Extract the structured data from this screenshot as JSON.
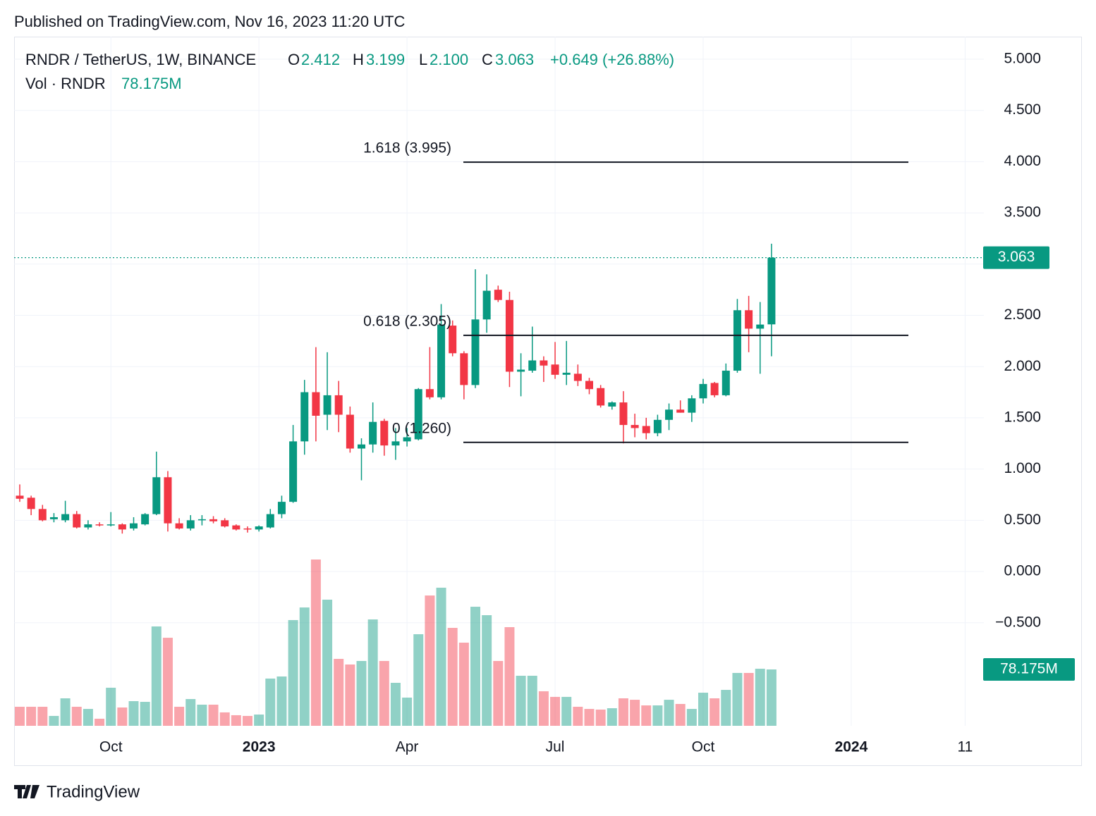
{
  "header": "Published on TradingView.com, Nov 16, 2023 11:20 UTC",
  "legend": {
    "symbol": "RNDR / TetherUS, 1W, BINANCE",
    "o_label": "O",
    "o": "2.412",
    "h_label": "H",
    "h": "3.199",
    "l_label": "L",
    "l": "2.100",
    "c_label": "C",
    "c": "3.063",
    "change": "+0.649 (+26.88%)",
    "vol_label": "Vol · RNDR",
    "vol": "78.175M"
  },
  "footer": "TradingView",
  "chart_data": {
    "type": "candlestick",
    "up_color": "#089981",
    "down_color": "#f23645",
    "ylim": [
      -1.506,
      5.22
    ],
    "yticks": [
      {
        "value": 5,
        "label": "5.000"
      },
      {
        "value": 4.5,
        "label": "4.500"
      },
      {
        "value": 4,
        "label": "4.000"
      },
      {
        "value": 3.5,
        "label": "3.500"
      },
      {
        "value": 3,
        "label": "3.000"
      },
      {
        "value": 2.5,
        "label": "2.500"
      },
      {
        "value": 2,
        "label": "2.000"
      },
      {
        "value": 1.5,
        "label": "1.500"
      },
      {
        "value": 1,
        "label": "1.000"
      },
      {
        "value": 0.5,
        "label": "0.500"
      },
      {
        "value": 0,
        "label": "0.000"
      },
      {
        "value": -0.5,
        "label": "−0.500"
      }
    ],
    "xticks": [
      {
        "value": 8,
        "label": "Oct"
      },
      {
        "value": 21,
        "label": "2023"
      },
      {
        "value": 34,
        "label": "Apr"
      },
      {
        "value": 47,
        "label": "Jul"
      },
      {
        "value": 60,
        "label": "Oct"
      },
      {
        "value": 73,
        "label": "2024"
      },
      {
        "value": 83,
        "label": "11"
      }
    ],
    "open": [
      0.74,
      0.72,
      0.61,
      0.51,
      0.5,
      0.56,
      0.43,
      0.46,
      0.45,
      0.46,
      0.42,
      0.46,
      0.56,
      0.92,
      0.47,
      0.42,
      0.5,
      0.51,
      0.5,
      0.45,
      0.42,
      0.41,
      0.43,
      0.56,
      0.68,
      1.27,
      1.75,
      1.53,
      1.72,
      1.53,
      1.2,
      1.24,
      1.47,
      1.23,
      1.27,
      1.29,
      1.78,
      1.7,
      2.4,
      2.13,
      1.82,
      2.46,
      2.75,
      2.65,
      1.95,
      1.96,
      2.06,
      2.02,
      1.92,
      1.93,
      1.86,
      1.79,
      1.61,
      1.65,
      1.43,
      1.42,
      1.35,
      1.48,
      1.58,
      1.55,
      1.69,
      1.84,
      1.72,
      1.96,
      2.55,
      2.37,
      2.412
    ],
    "high": [
      0.85,
      0.74,
      0.65,
      0.57,
      0.69,
      0.59,
      0.5,
      0.48,
      0.58,
      0.47,
      0.53,
      0.57,
      1.17,
      0.98,
      0.52,
      0.55,
      0.55,
      0.54,
      0.52,
      0.46,
      0.44,
      0.45,
      0.61,
      0.74,
      1.43,
      1.87,
      2.19,
      2.14,
      1.86,
      1.61,
      1.3,
      1.65,
      1.49,
      1.4,
      1.4,
      1.79,
      2.19,
      2.61,
      2.45,
      2.15,
      2.95,
      2.9,
      2.79,
      2.73,
      2.13,
      2.39,
      2.1,
      2.24,
      2.25,
      2.02,
      1.89,
      1.82,
      1.66,
      1.76,
      1.54,
      1.5,
      1.53,
      1.64,
      1.67,
      1.72,
      1.88,
      1.85,
      2.03,
      2.66,
      2.69,
      2.63,
      3.199
    ],
    "low": [
      0.68,
      0.55,
      0.49,
      0.48,
      0.48,
      0.42,
      0.41,
      0.44,
      0.44,
      0.37,
      0.4,
      0.45,
      0.55,
      0.39,
      0.41,
      0.4,
      0.45,
      0.47,
      0.43,
      0.4,
      0.38,
      0.39,
      0.42,
      0.52,
      0.67,
      1.14,
      1.27,
      1.38,
      1.36,
      1.16,
      0.89,
      1.16,
      1.13,
      1.09,
      1.22,
      1.28,
      1.68,
      1.68,
      2.1,
      1.68,
      1.79,
      2.33,
      2.63,
      1.8,
      1.71,
      1.94,
      1.85,
      1.88,
      1.82,
      1.81,
      1.73,
      1.6,
      1.58,
      1.25,
      1.31,
      1.29,
      1.32,
      1.38,
      1.55,
      1.46,
      1.64,
      1.7,
      1.71,
      1.94,
      2.14,
      1.93,
      2.1
    ],
    "close": [
      0.71,
      0.61,
      0.5,
      0.53,
      0.56,
      0.43,
      0.46,
      0.45,
      0.46,
      0.41,
      0.47,
      0.56,
      0.92,
      0.47,
      0.42,
      0.5,
      0.51,
      0.49,
      0.44,
      0.41,
      0.41,
      0.44,
      0.56,
      0.68,
      1.27,
      1.75,
      1.52,
      1.72,
      1.53,
      1.2,
      1.24,
      1.46,
      1.23,
      1.27,
      1.31,
      1.78,
      1.7,
      2.41,
      2.13,
      1.82,
      2.46,
      2.74,
      2.65,
      1.95,
      1.97,
      2.06,
      2.01,
      1.92,
      1.94,
      1.86,
      1.78,
      1.62,
      1.65,
      1.43,
      1.4,
      1.35,
      1.48,
      1.58,
      1.55,
      1.69,
      1.83,
      1.72,
      1.96,
      2.55,
      2.37,
      2.41,
      3.063
    ],
    "volume": [
      26.4,
      26.4,
      26.4,
      13.7,
      38.1,
      26.4,
      23.4,
      9.8,
      52.8,
      25.4,
      34.2,
      33.2,
      137.8,
      122.1,
      26.4,
      37.1,
      29.3,
      29.3,
      18.6,
      14.7,
      13.7,
      15.6,
      65.5,
      68.4,
      146.6,
      164.1,
      230.6,
      174.9,
      92.8,
      85.0,
      89.9,
      147.5,
      89.9,
      59.6,
      39.1,
      127.0,
      180.7,
      191.5,
      135.8,
      115.3,
      165.1,
      153.4,
      89.9,
      136.8,
      69.4,
      69.4,
      47.9,
      40.1,
      40.1,
      26.4,
      23.4,
      22.5,
      24.4,
      38.1,
      36.1,
      28.3,
      28.3,
      36.1,
      30.3,
      23.4,
      45.9,
      38.1,
      49.8,
      73.3,
      73.3,
      79.1,
      78.175
    ],
    "price_tag": "3.063",
    "volume_tag": "78.175M",
    "fib_levels": [
      {
        "value": 3.995,
        "label": "1.618 (3.995)"
      },
      {
        "value": 2.305,
        "label": "0.618 (2.305)"
      },
      {
        "value": 1.26,
        "label": "0 (1.260)"
      }
    ]
  }
}
